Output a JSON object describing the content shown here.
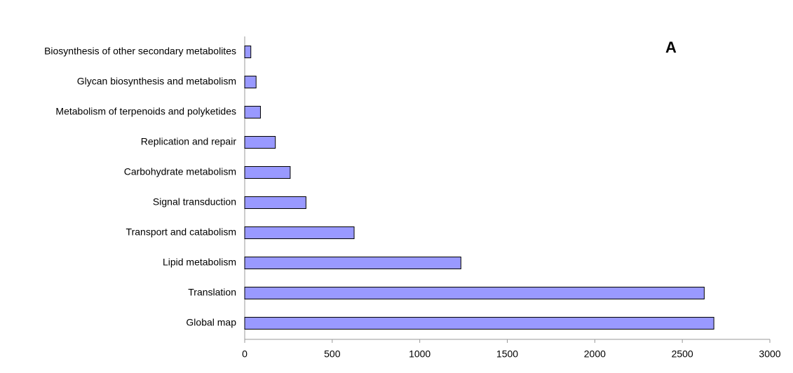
{
  "chart_data": {
    "type": "hbar",
    "annotation": "A",
    "categories": [
      "Biosynthesis of other secondary metabolites",
      "Glycan biosynthesis and metabolism",
      "Metabolism of terpenoids and polyketides",
      "Replication and repair",
      "Carbohydrate metabolism",
      "Signal transduction",
      "Transport and catabolism",
      "Lipid metabolism",
      "Translation",
      "Global map"
    ],
    "values": [
      35,
      65,
      90,
      175,
      260,
      350,
      625,
      1235,
      2625,
      2680
    ],
    "color": "#9999ff",
    "xlim": [
      0,
      3000
    ],
    "xticks": [
      0,
      500,
      1000,
      1500,
      2000,
      2500,
      3000
    ],
    "grid": false
  }
}
